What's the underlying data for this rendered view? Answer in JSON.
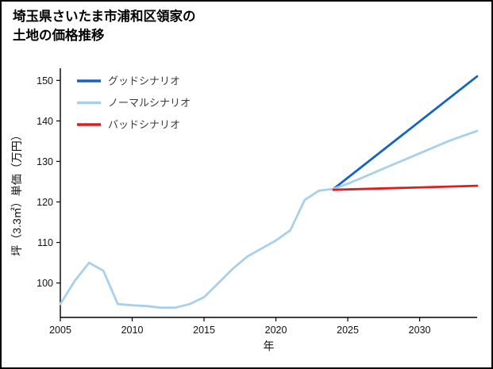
{
  "title": {
    "line1": "埼玉県さいたま市浦和区領家の",
    "line2": "土地の価格推移"
  },
  "chart_data": {
    "type": "line",
    "title": "埼玉県さいたま市浦和区領家の土地の価格推移",
    "xlabel": "年",
    "ylabel": "坪（3.3㎡）単価（万円）",
    "xlim": [
      2005,
      2034
    ],
    "ylim": [
      91.5,
      153
    ],
    "xticks": [
      2005,
      2010,
      2015,
      2020,
      2025,
      2030
    ],
    "yticks": [
      100,
      110,
      120,
      130,
      140,
      150
    ],
    "grid": false,
    "legend_position": "upper-left",
    "axis_color": "#000000",
    "background_color": "#ffffff",
    "series": [
      {
        "key": "good-scenario",
        "name": "グッドシナリオ",
        "color": "#1565c0",
        "x": [
          2024,
          2034
        ],
        "y": [
          123.2,
          151
        ]
      },
      {
        "key": "normal-scenario",
        "name": "ノーマルシナリオ",
        "color": "#a8cfed",
        "x": [
          2005,
          2006,
          2007,
          2008,
          2009,
          2010,
          2011,
          2012,
          2013,
          2014,
          2015,
          2016,
          2017,
          2018,
          2019,
          2020,
          2021,
          2022,
          2023,
          2024,
          2025,
          2026,
          2027,
          2028,
          2029,
          2030,
          2031,
          2032,
          2033,
          2034
        ],
        "y": [
          94.8,
          100.5,
          105,
          103,
          94.8,
          94.5,
          94.3,
          93.9,
          93.9,
          94.8,
          96.5,
          100,
          103.5,
          106.5,
          108.5,
          110.5,
          113,
          120.5,
          122.8,
          123.2,
          124.5,
          126,
          127.5,
          129,
          130.5,
          132,
          133.5,
          135,
          136.3,
          137.5
        ]
      },
      {
        "key": "bad-scenario",
        "name": "バッドシナリオ",
        "color": "#e41a1c",
        "x": [
          2024,
          2034
        ],
        "y": [
          123,
          124
        ]
      }
    ]
  }
}
